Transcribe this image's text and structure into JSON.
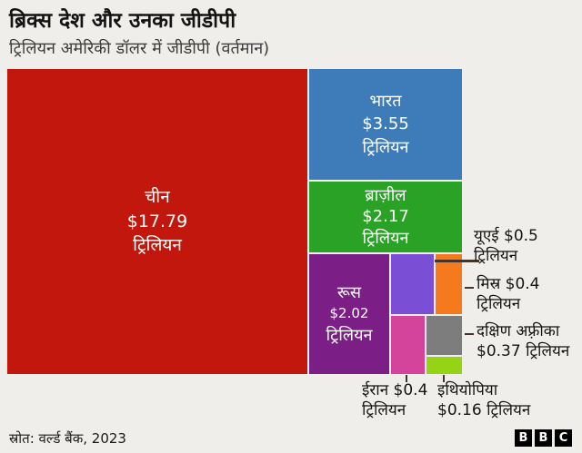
{
  "header": {
    "title": "ब्रिक्स देश और उनका जीडीपी",
    "subtitle": "ट्रिलियन अमेरिकी डॉलर में जीडीपी (वर्तमान)"
  },
  "chart_data": {
    "type": "treemap",
    "title": "ब्रिक्स देश और उनका जीडीपी",
    "subtitle": "ट्रिलियन अमेरिकी डॉलर में जीडीपी (वर्तमान)",
    "unit": "ट्रिलियन अमेरिकी डॉलर (वर्तमान)",
    "items": [
      {
        "country": "चीन",
        "value_trillion_usd": 17.79,
        "color": "#c1170c",
        "label_placement": "inside",
        "lines": [
          "चीन",
          "$17.79",
          "ट्रिलियन"
        ]
      },
      {
        "country": "भारत",
        "value_trillion_usd": 3.55,
        "color": "#3d7cb8",
        "label_placement": "inside",
        "lines": [
          "भारत",
          "$3.55",
          "ट्रिलियन"
        ]
      },
      {
        "country": "ब्राज़ील",
        "value_trillion_usd": 2.17,
        "color": "#2aa226",
        "label_placement": "inside",
        "lines": [
          "ब्राज़ील",
          "$2.17",
          "ट्रिलियन"
        ]
      },
      {
        "country": "रूस",
        "value_trillion_usd": 2.02,
        "color": "#7b1e86",
        "label_placement": "inside",
        "lines": [
          "रूस",
          "$2.02",
          "ट्रिलियन"
        ]
      },
      {
        "country": "यूएई",
        "value_trillion_usd": 0.5,
        "color": "#7a4fd6",
        "label_placement": "outside-right",
        "lines": [
          "यूएई  $0.5",
          "ट्रिलियन"
        ]
      },
      {
        "country": "मिस्र",
        "value_trillion_usd": 0.4,
        "color": "#f5791d",
        "label_placement": "outside-right",
        "lines": [
          "मिस्र  $0.4",
          "ट्रिलियन"
        ]
      },
      {
        "country": "ईरान",
        "value_trillion_usd": 0.4,
        "color": "#d4449b",
        "label_placement": "below",
        "lines": [
          "ईरान $0.4",
          "ट्रिलियन"
        ]
      },
      {
        "country": "दक्षिण अफ़्रीका",
        "value_trillion_usd": 0.37,
        "color": "#7d7d7d",
        "label_placement": "outside-right",
        "lines": [
          "दक्षिण अफ़्रीका",
          "$0.37 ट्रिलियन"
        ]
      },
      {
        "country": "इथियोपिया",
        "value_trillion_usd": 0.16,
        "color": "#95d414",
        "label_placement": "below",
        "lines": [
          "इथियोपिया",
          "$0.16 ट्रिलियन"
        ]
      }
    ]
  },
  "footer": {
    "source": "स्रोत: वर्ल्ड बैंक, 2023",
    "bbc_logo": [
      "B",
      "B",
      "C"
    ]
  }
}
